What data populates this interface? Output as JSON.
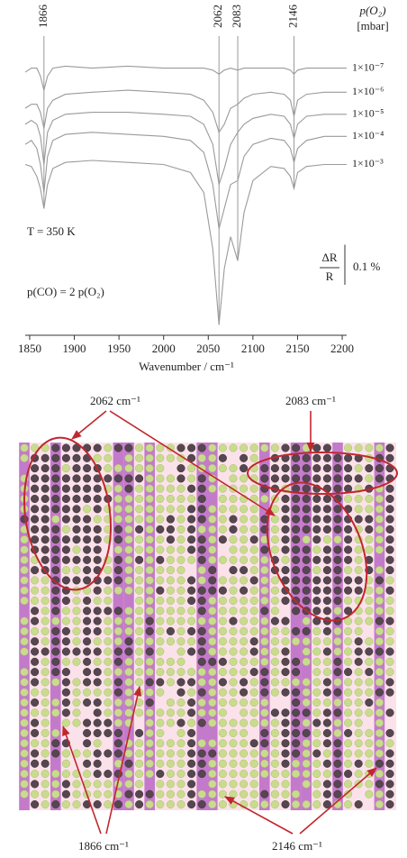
{
  "chart_data": {
    "type": "line",
    "x": [
      1845,
      1852,
      1858,
      1862,
      1866,
      1870,
      1876,
      1890,
      1920,
      1960,
      2000,
      2030,
      2045,
      2055,
      2062,
      2068,
      2075,
      2083,
      2090,
      2100,
      2120,
      2135,
      2142,
      2146,
      2150,
      2160,
      2180,
      2205
    ],
    "series": [
      {
        "name": "1×10⁻⁷",
        "color": "#9a9a9a",
        "values": [
          -0.01,
          0,
          0,
          -0.02,
          -0.055,
          -0.02,
          0,
          0.005,
          0,
          0.005,
          0,
          0,
          0,
          -0.005,
          -0.015,
          -0.005,
          0,
          -0.005,
          0,
          0,
          0,
          0,
          -0.005,
          -0.015,
          -0.005,
          0,
          0,
          0
        ]
      },
      {
        "name": "1×10⁻⁶",
        "color": "#9a9a9a",
        "values": [
          -0.1,
          -0.09,
          -0.09,
          -0.11,
          -0.15,
          -0.1,
          -0.08,
          -0.065,
          -0.06,
          -0.055,
          -0.06,
          -0.065,
          -0.08,
          -0.11,
          -0.16,
          -0.14,
          -0.1,
          -0.09,
          -0.075,
          -0.065,
          -0.06,
          -0.065,
          -0.08,
          -0.12,
          -0.08,
          -0.065,
          -0.06,
          -0.06
        ]
      },
      {
        "name": "1×10⁻⁵",
        "color": "#9a9a9a",
        "values": [
          -0.14,
          -0.13,
          -0.14,
          -0.17,
          -0.24,
          -0.16,
          -0.13,
          -0.115,
          -0.11,
          -0.11,
          -0.115,
          -0.12,
          -0.14,
          -0.19,
          -0.29,
          -0.25,
          -0.19,
          -0.16,
          -0.14,
          -0.125,
          -0.115,
          -0.12,
          -0.14,
          -0.175,
          -0.14,
          -0.12,
          -0.115,
          -0.115
        ]
      },
      {
        "name": "1×10⁻⁴",
        "color": "#9a9a9a",
        "values": [
          -0.19,
          -0.18,
          -0.2,
          -0.24,
          -0.31,
          -0.22,
          -0.18,
          -0.165,
          -0.16,
          -0.165,
          -0.17,
          -0.18,
          -0.21,
          -0.29,
          -0.4,
          -0.35,
          -0.29,
          -0.28,
          -0.22,
          -0.19,
          -0.175,
          -0.18,
          -0.2,
          -0.235,
          -0.2,
          -0.18,
          -0.17,
          -0.17
        ]
      },
      {
        "name": "1×10⁻³",
        "color": "#9a9a9a",
        "values": [
          -0.24,
          -0.245,
          -0.27,
          -0.3,
          -0.35,
          -0.29,
          -0.25,
          -0.235,
          -0.23,
          -0.235,
          -0.24,
          -0.26,
          -0.31,
          -0.45,
          -0.64,
          -0.5,
          -0.42,
          -0.48,
          -0.36,
          -0.28,
          -0.245,
          -0.25,
          -0.27,
          -0.3,
          -0.26,
          -0.245,
          -0.24,
          -0.24
        ]
      }
    ],
    "xlim": [
      1845,
      2205
    ],
    "ylim": [
      -0.65,
      0.08
    ],
    "xticks": [
      1850,
      1900,
      1950,
      2000,
      2050,
      2100,
      2150,
      2200
    ],
    "xlabel": "Wavenumber / cm⁻¹",
    "peaks": [
      1866,
      2062,
      2083,
      2146
    ],
    "legend_title": "p(O₂)",
    "legend_units": "[mbar]",
    "annotations": [
      "T = 350 K",
      "p(CO) = 2 p(O₂)"
    ],
    "scale_numerator": "ΔR",
    "scale_denominator": "R",
    "scale_bar": {
      "value": 0.1,
      "label": "0.1 %"
    }
  },
  "diagram": {
    "labels": [
      "2062 cm⁻¹",
      "2083 cm⁻¹",
      "1866 cm⁻¹",
      "2146 cm⁻¹"
    ]
  }
}
